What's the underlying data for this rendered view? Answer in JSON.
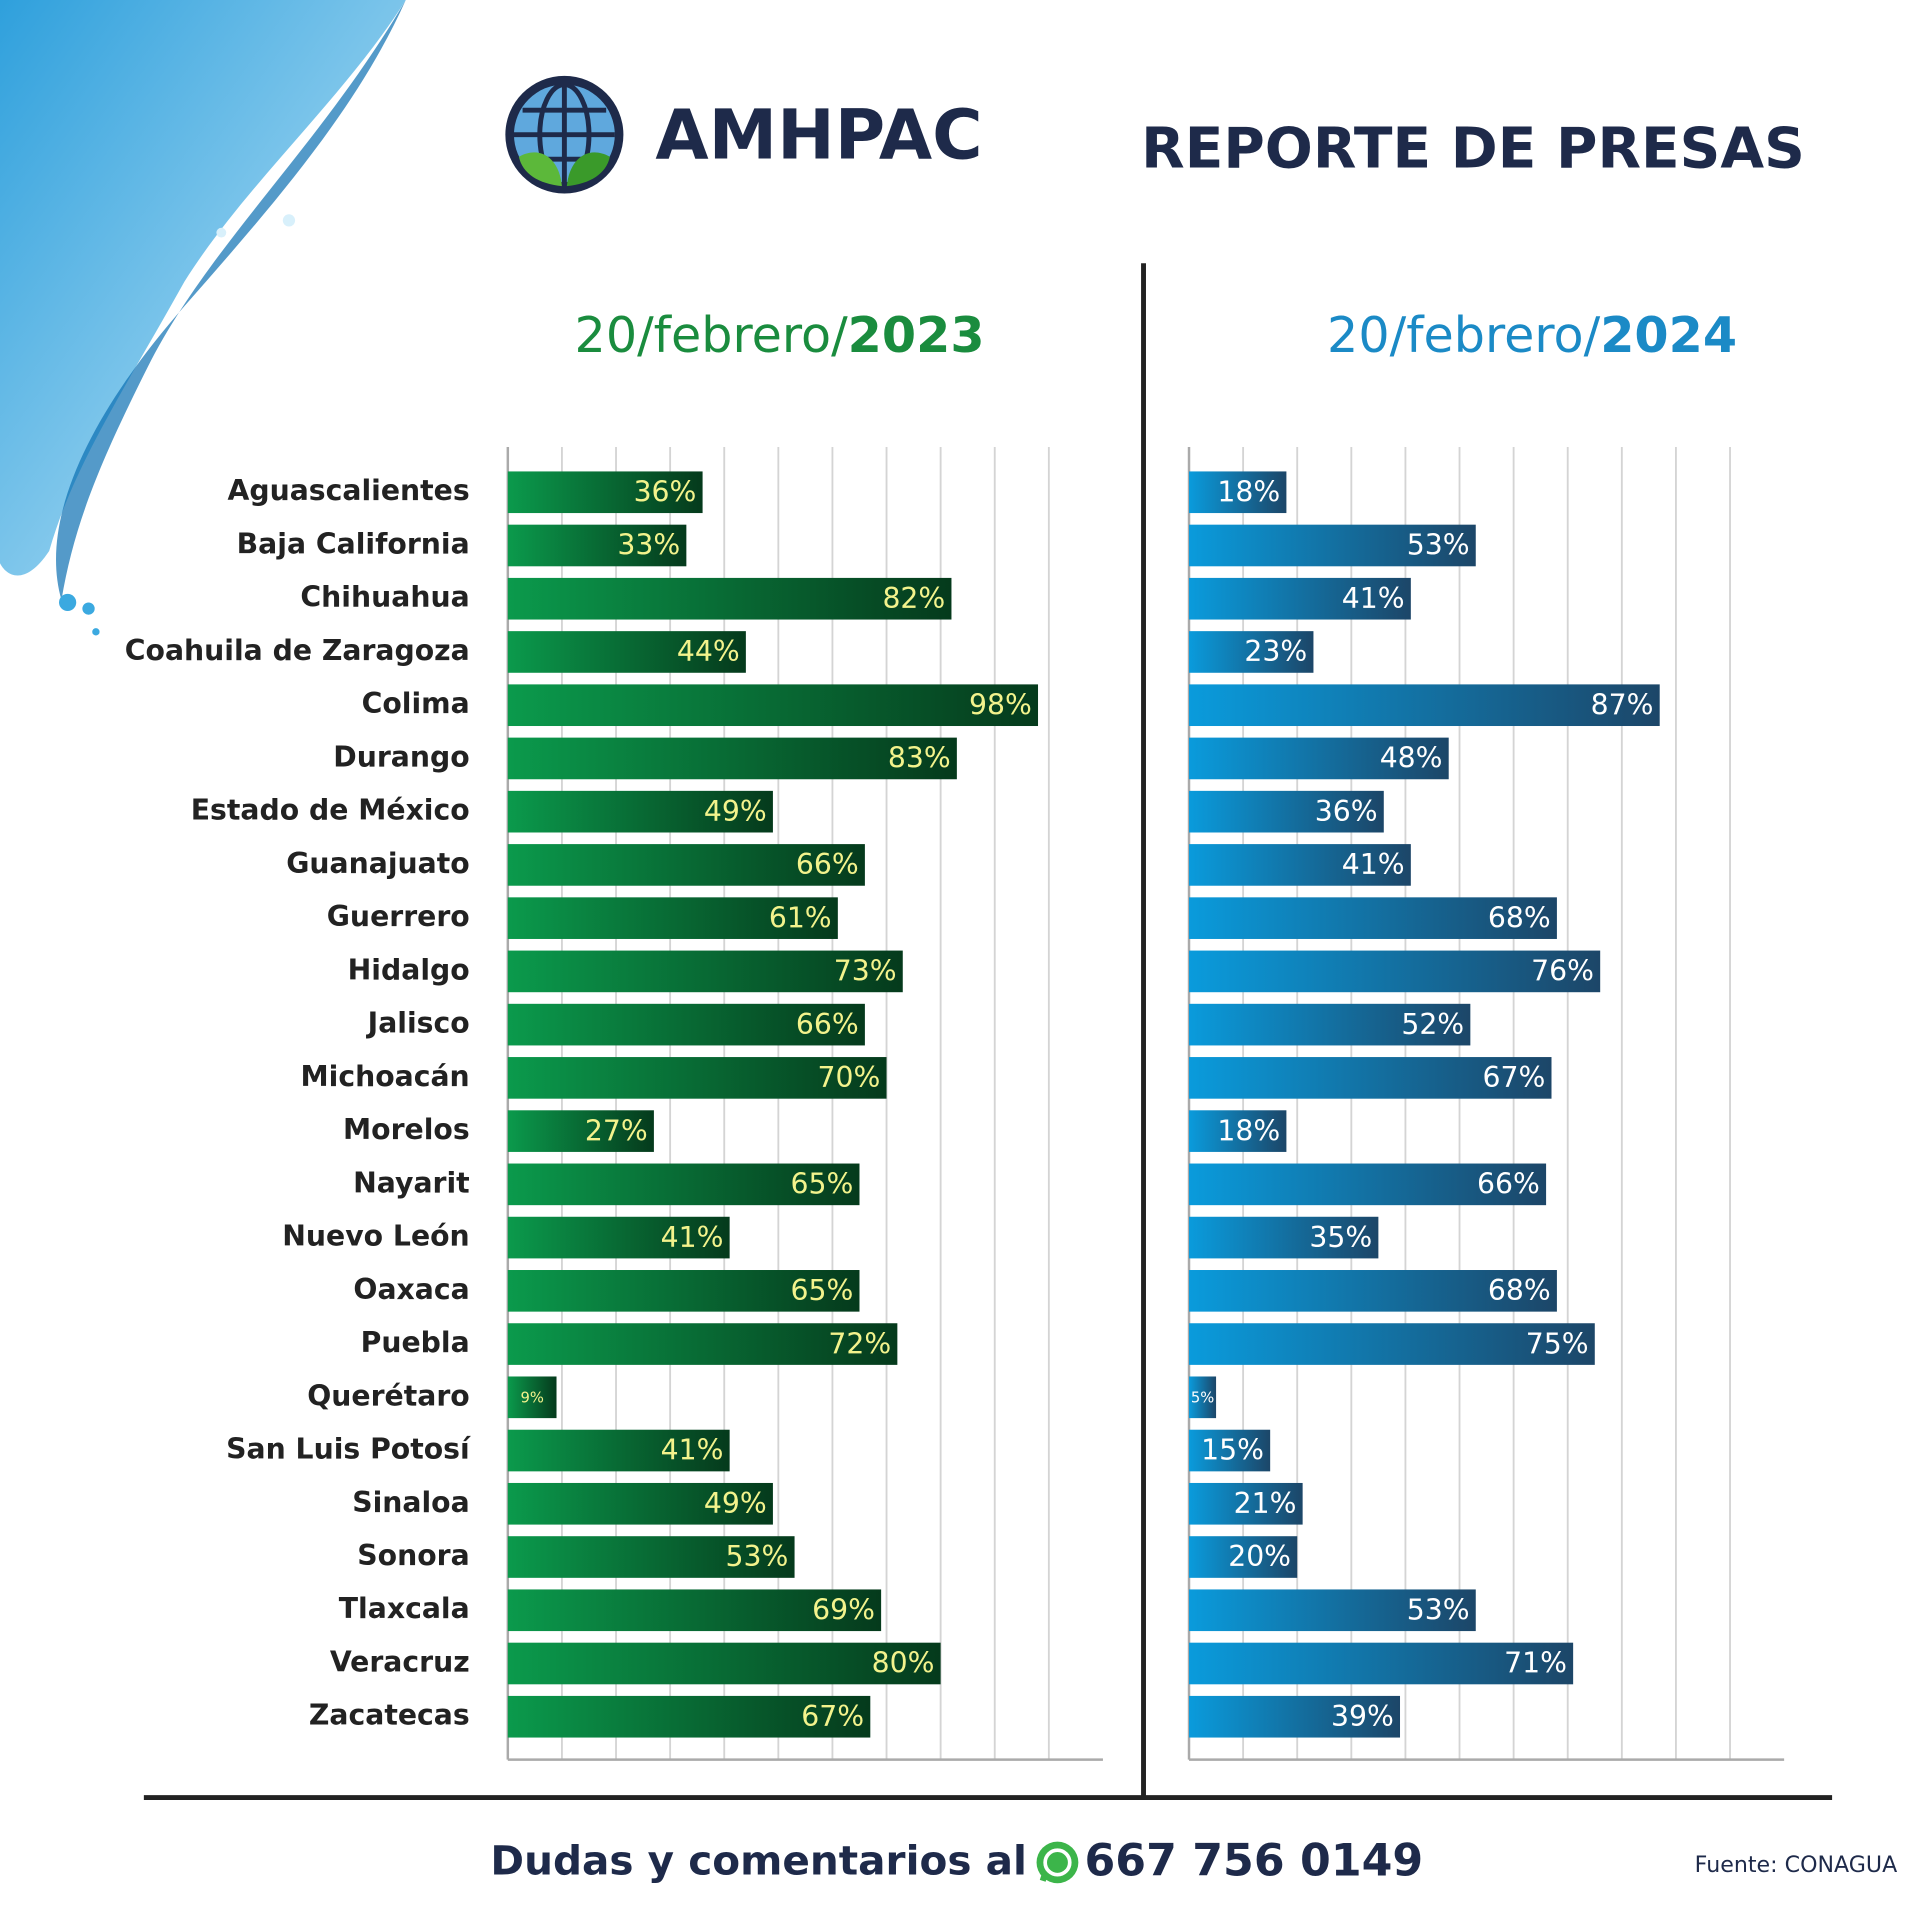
{
  "header": {
    "brand": "AMHPAC",
    "title": "REPORTE DE PRESAS"
  },
  "chart_data": [
    {
      "type": "hbar",
      "subtitle": "20/febrero/",
      "subtitle_year": "2023",
      "subtitle_color": "#1a8c3e",
      "categories": [
        "Aguascalientes",
        "Baja California",
        "Chihuahua",
        "Coahuila de Zaragoza",
        "Colima",
        "Durango",
        "Estado de México",
        "Guanajuato",
        "Guerrero",
        "Hidalgo",
        "Jalisco",
        "Michoacán",
        "Morelos",
        "Nayarit",
        "Nuevo León",
        "Oaxaca",
        "Puebla",
        "Querétaro",
        "San Luis Potosí",
        "Sinaloa",
        "Sonora",
        "Tlaxcala",
        "Veracruz",
        "Zacatecas"
      ],
      "values": [
        36,
        33,
        82,
        44,
        98,
        83,
        49,
        66,
        61,
        73,
        66,
        70,
        27,
        65,
        41,
        65,
        72,
        9,
        41,
        49,
        53,
        69,
        80,
        67
      ],
      "value_labels": [
        "36%",
        "33%",
        "82%",
        "44%",
        "98%",
        "83%",
        "49%",
        "66%",
        "61%",
        "73%",
        "66%",
        "70%",
        "27%",
        "65%",
        "41%",
        "65%",
        "72%",
        "9%",
        "41%",
        "49%",
        "53%",
        "69%",
        "80%",
        "67%"
      ],
      "color": [
        "#0b9a4c",
        "#053a1c"
      ],
      "label_color": "#f3f38c",
      "xlim": [
        0,
        110
      ],
      "xticks": [
        0,
        10,
        20,
        30,
        40,
        50,
        60,
        70,
        80,
        90,
        100
      ],
      "grid": true
    },
    {
      "type": "hbar",
      "subtitle": "20/febrero/",
      "subtitle_year": "2024",
      "subtitle_color": "#1b8ac6",
      "values": [
        18,
        53,
        41,
        23,
        87,
        48,
        36,
        41,
        68,
        76,
        52,
        67,
        18,
        66,
        35,
        68,
        75,
        5,
        15,
        21,
        20,
        53,
        71,
        39
      ],
      "value_labels": [
        "18%",
        "53%",
        "41%",
        "23%",
        "87%",
        "48%",
        "36%",
        "41%",
        "68%",
        "76%",
        "52%",
        "67%",
        "18%",
        "66%",
        "35%",
        "68%",
        "75%",
        "5%",
        "15%",
        "21%",
        "20%",
        "53%",
        "71%",
        "39%"
      ],
      "color": [
        "#0a9bdc",
        "#1c4668"
      ],
      "label_color": "#ffffff",
      "xlim": [
        0,
        110
      ],
      "xticks": [
        0,
        10,
        20,
        30,
        40,
        50,
        60,
        70,
        80,
        90,
        100
      ],
      "grid": true
    }
  ],
  "footer": {
    "contact": "Dudas y comentarios al",
    "phone": "667 756 0149",
    "source": "Fuente: CONAGUA"
  }
}
